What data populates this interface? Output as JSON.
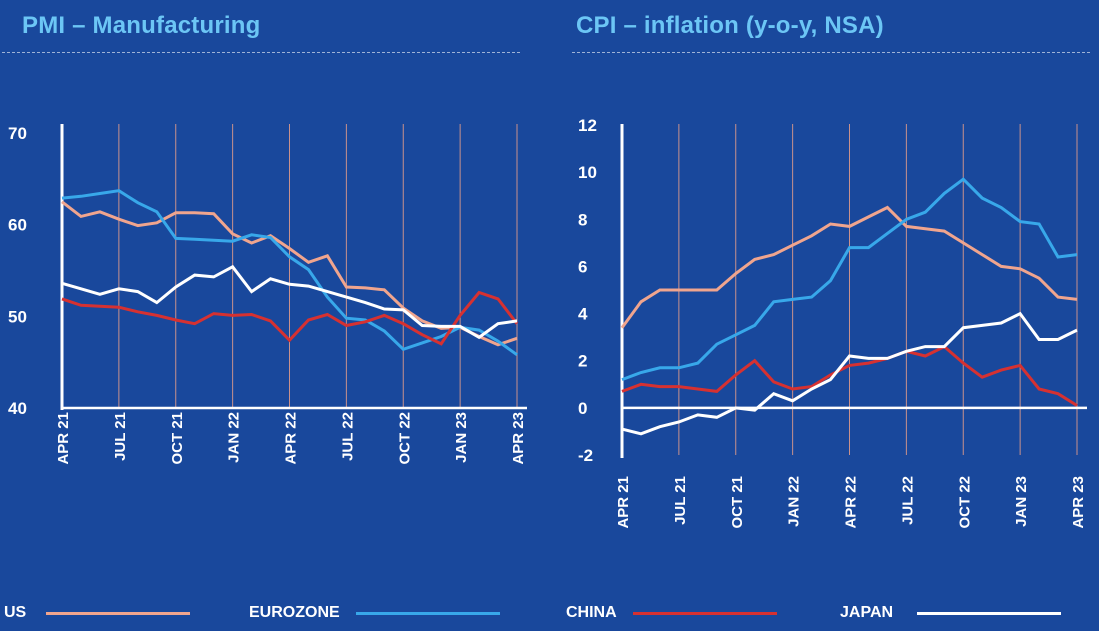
{
  "colors": {
    "background": "#19489c",
    "title": "#6cc6f5",
    "US": "#f0a58e",
    "EUROZONE": "#38a8ea",
    "CHINA": "#d63131",
    "JAPAN": "#ffffff",
    "grid": "#c9918c"
  },
  "legend": [
    {
      "name": "US",
      "color": "#f0a58e"
    },
    {
      "name": "EUROZONE",
      "color": "#38a8ea"
    },
    {
      "name": "CHINA",
      "color": "#d63131"
    },
    {
      "name": "JAPAN",
      "color": "#ffffff"
    }
  ],
  "chart_data": [
    {
      "type": "line",
      "title": "PMI – Manufacturing",
      "xlabel": "",
      "ylabel": "",
      "ylim": [
        40,
        70
      ],
      "yticks": [
        "70",
        "60",
        "50",
        "40"
      ],
      "ytick_values": [
        70,
        60,
        50,
        40
      ],
      "xticks": [
        "APR 21",
        "JUL 21",
        "OCT 21",
        "JAN 22",
        "APR 22",
        "JUL 22",
        "OCT 22",
        "JAN 23",
        "APR 23"
      ],
      "x": [
        "Apr 21",
        "May 21",
        "Jun 21",
        "Jul 21",
        "Aug 21",
        "Sep 21",
        "Oct 21",
        "Nov 21",
        "Dec 21",
        "Jan 22",
        "Feb 22",
        "Mar 22",
        "Apr 22",
        "May 22",
        "Jun 22",
        "Jul 22",
        "Aug 22",
        "Sep 22",
        "Oct 22",
        "Nov 22",
        "Dec 22",
        "Jan 23",
        "Feb 23",
        "Mar 23",
        "Apr 23"
      ],
      "grid": "vertical-quarterly",
      "legend": "bottom",
      "series": [
        {
          "name": "US",
          "values": [
            62.5,
            60.9,
            61.4,
            60.6,
            59.9,
            60.2,
            61.3,
            61.3,
            61.2,
            59.0,
            58.0,
            58.8,
            57.4,
            55.9,
            56.6,
            53.2,
            53.1,
            52.9,
            50.9,
            49.5,
            48.7,
            48.8,
            47.8,
            46.9,
            47.6
          ]
        },
        {
          "name": "EUROZONE",
          "values": [
            62.9,
            63.1,
            63.4,
            63.7,
            62.4,
            61.4,
            58.5,
            58.4,
            58.3,
            58.2,
            58.9,
            58.6,
            56.5,
            55.1,
            52.1,
            49.8,
            49.6,
            48.4,
            46.4,
            47.1,
            47.8,
            48.8,
            48.5,
            47.3,
            45.8
          ]
        },
        {
          "name": "CHINA",
          "values": [
            51.9,
            51.2,
            51.1,
            51.0,
            50.5,
            50.1,
            49.6,
            49.2,
            50.3,
            50.1,
            50.2,
            49.5,
            47.4,
            49.6,
            50.2,
            49.0,
            49.4,
            50.1,
            49.2,
            48.0,
            47.0,
            50.1,
            52.6,
            51.9,
            49.2
          ]
        },
        {
          "name": "JAPAN",
          "values": [
            53.6,
            53.0,
            52.4,
            53.0,
            52.7,
            51.5,
            53.2,
            54.5,
            54.3,
            55.4,
            52.7,
            54.1,
            53.5,
            53.3,
            52.7,
            52.1,
            51.5,
            50.8,
            50.7,
            49.0,
            48.9,
            48.9,
            47.7,
            49.2,
            49.5
          ]
        }
      ]
    },
    {
      "type": "line",
      "title": "CPI – inflation (y-o-y, NSA)",
      "xlabel": "",
      "ylabel": "",
      "ylim": [
        -2,
        12
      ],
      "yticks": [
        "12",
        "10",
        "8",
        "6",
        "4",
        "2",
        "0",
        "-2"
      ],
      "ytick_values": [
        12,
        10,
        8,
        6,
        4,
        2,
        0,
        -2
      ],
      "xticks": [
        "APR 21",
        "JUL 21",
        "OCT 21",
        "JAN 22",
        "APR 22",
        "JUL 22",
        "OCT 22",
        "JAN 23",
        "APR 23"
      ],
      "x": [
        "Apr 21",
        "May 21",
        "Jun 21",
        "Jul 21",
        "Aug 21",
        "Sep 21",
        "Oct 21",
        "Nov 21",
        "Dec 21",
        "Jan 22",
        "Feb 22",
        "Mar 22",
        "Apr 22",
        "May 22",
        "Jun 22",
        "Jul 22",
        "Aug 22",
        "Sep 22",
        "Oct 22",
        "Nov 22",
        "Dec 22",
        "Jan 23",
        "Feb 23",
        "Mar 23",
        "Apr 23"
      ],
      "grid": "vertical-quarterly",
      "legend": "bottom",
      "series": [
        {
          "name": "US",
          "values": [
            3.4,
            4.5,
            5.0,
            5.0,
            5.0,
            5.0,
            5.7,
            6.3,
            6.5,
            6.9,
            7.3,
            7.8,
            7.7,
            8.1,
            8.5,
            7.7,
            7.6,
            7.5,
            7.0,
            6.5,
            6.0,
            5.9,
            5.5,
            4.7,
            4.6
          ]
        },
        {
          "name": "EUROZONE",
          "values": [
            1.2,
            1.5,
            1.7,
            1.7,
            1.9,
            2.7,
            3.1,
            3.5,
            4.5,
            4.6,
            4.7,
            5.4,
            6.8,
            6.8,
            7.4,
            8.0,
            8.3,
            9.1,
            9.7,
            8.9,
            8.5,
            7.9,
            7.8,
            6.4,
            6.5
          ]
        },
        {
          "name": "CHINA",
          "values": [
            0.7,
            1.0,
            0.9,
            0.9,
            0.8,
            0.7,
            1.4,
            2.0,
            1.1,
            0.8,
            0.9,
            1.4,
            1.8,
            1.9,
            2.1,
            2.4,
            2.2,
            2.6,
            1.9,
            1.3,
            1.6,
            1.8,
            0.8,
            0.6,
            0.1
          ]
        },
        {
          "name": "JAPAN",
          "values": [
            -0.9,
            -1.1,
            -0.8,
            -0.6,
            -0.3,
            -0.4,
            0.0,
            -0.1,
            0.6,
            0.3,
            0.8,
            1.2,
            2.2,
            2.1,
            2.1,
            2.4,
            2.6,
            2.6,
            3.4,
            3.5,
            3.6,
            4.0,
            2.9,
            2.9,
            3.3
          ]
        }
      ]
    }
  ]
}
